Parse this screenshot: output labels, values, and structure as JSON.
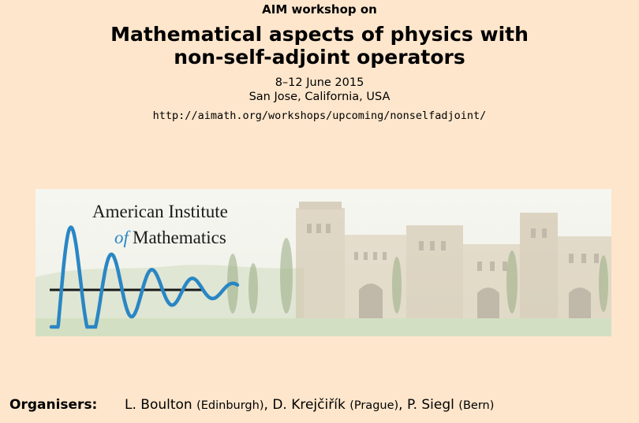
{
  "header": {
    "kicker": "AIM workshop on",
    "title_line1": "Mathematical aspects of physics with",
    "title_line2": "non-self-adjoint operators",
    "dates": "8–12 June 2015",
    "location": "San Jose, California, USA",
    "url": "http://aimath.org/workshops/upcoming/nonselfadjoint/"
  },
  "banner": {
    "logo_line1": "American Institute",
    "logo_of": "of",
    "logo_line2": "Mathematics",
    "wave_color": "#2a86c4"
  },
  "organisers": {
    "label": "Organisers:",
    "people": [
      {
        "name": "L. Boulton",
        "affiliation": "(Edinburgh)",
        "sep": ","
      },
      {
        "name": "D. Krejčiřík",
        "affiliation": "(Prague)",
        "sep": ","
      },
      {
        "name": "P. Siegl",
        "affiliation": "(Bern)",
        "sep": ""
      }
    ]
  },
  "colors": {
    "background": "#fde6cc"
  }
}
